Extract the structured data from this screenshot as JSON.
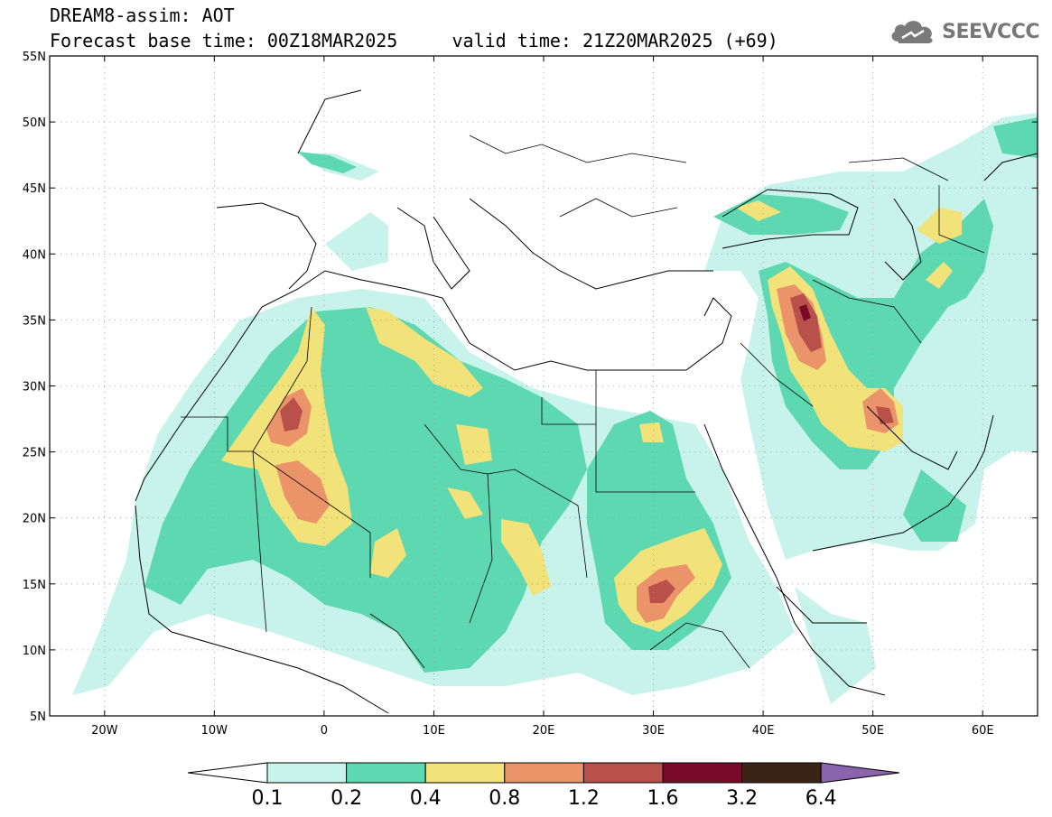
{
  "header": {
    "title_line1": "DREAM8-assim: AOT",
    "title_line2": "Forecast base time: 00Z18MAR2025     valid time: 21Z20MAR2025 (+69)"
  },
  "logo": {
    "text": "SEEVCCC",
    "icon": "cloud-icon",
    "color": "#7a7a7a"
  },
  "map": {
    "lon_range": [
      -25,
      65
    ],
    "lat_range": [
      5,
      55
    ],
    "lat_ticks": [
      "55N",
      "50N",
      "45N",
      "40N",
      "35N",
      "30N",
      "25N",
      "20N",
      "15N",
      "10N",
      "5N"
    ],
    "lon_ticks": [
      "20W",
      "10W",
      "0",
      "10E",
      "20E",
      "30E",
      "40E",
      "50E",
      "60E"
    ],
    "grid": "dotted"
  },
  "colorbar": {
    "labels": [
      "0.1",
      "0.2",
      "0.4",
      "0.8",
      "1.2",
      "1.6",
      "3.2",
      "6.4"
    ],
    "colors": [
      "#c8f3ea",
      "#5ed8b0",
      "#f2e27a",
      "#eb946a",
      "#b8514a",
      "#7a0a2a",
      "#3b2416",
      "#8a64ac"
    ],
    "under_color": "#ffffff"
  }
}
